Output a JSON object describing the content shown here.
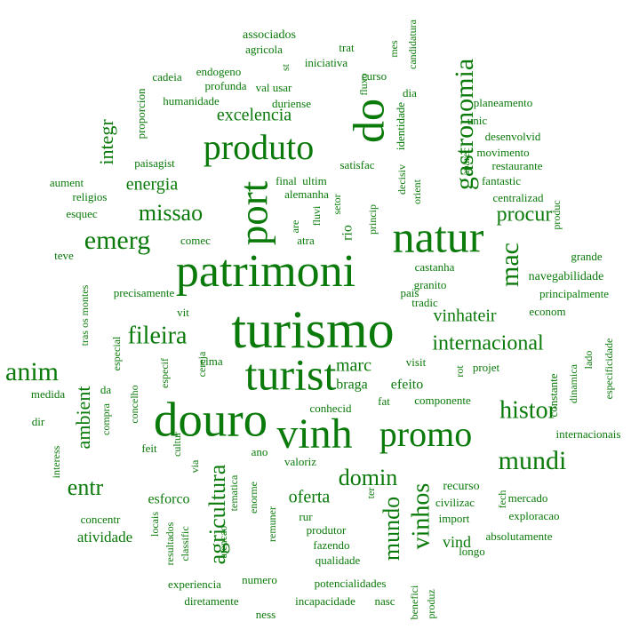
{
  "words": [
    "associados",
    "candidatura",
    "mes",
    "agricola",
    "trat",
    "st",
    "iniciativa",
    "fluxo",
    "cadeia",
    "endogeno",
    "curso",
    "profunda",
    "val usar",
    "dia",
    "proporcion",
    "humanidade",
    "duriense",
    "identidade",
    "planeamento",
    "gastronomia",
    "do",
    "excelencia",
    "unic",
    "integr",
    "produto",
    "desenvolvid",
    "aparec",
    "movimento",
    "restaurante",
    "paisagist",
    "satisfac",
    "decisiv",
    "orient",
    "fantastic",
    "aument",
    "energia",
    "final",
    "ultim",
    "port",
    "religios",
    "alemanha",
    "centralizad",
    "setor",
    "princip",
    "missao",
    "fluvi",
    "esquec",
    "procur",
    "produc",
    "natur",
    "are",
    "rio",
    "emerg",
    "comec",
    "atra",
    "mac",
    "grande",
    "teve",
    "castanha",
    "patrimoni",
    "navegabilidade",
    "tras os montes",
    "granito",
    "pais",
    "principalmente",
    "precisamente",
    "tradic",
    "vinhateir",
    "econom",
    "vit",
    "fileira",
    "turismo",
    "internacional",
    "especial",
    "especif",
    "cereja",
    "cima",
    "marc",
    "visit",
    "projet",
    "rot",
    "lado",
    "especificidade",
    "dinamica",
    "constante",
    "anim",
    "turist",
    "medida",
    "da",
    "braga",
    "efeito",
    "concelho",
    "ambient",
    "compra",
    "fat",
    "componente",
    "conhecid",
    "histor",
    "dir",
    "douro",
    "vinh",
    "promo",
    "internacionais",
    "cultur",
    "feit",
    "ano",
    "valoriz",
    "mundi",
    "interess",
    "via",
    "tematica",
    "agricultura",
    "domin",
    "entr",
    "enorme",
    "esforco",
    "vinhos",
    "oferta",
    "recurso",
    "fech",
    "mundo",
    "civilizac",
    "mercado",
    "ter",
    "import",
    "exploracao",
    "concentr",
    "locais",
    "remuner",
    "rur",
    "atividade",
    "produtor",
    "atencao",
    "absolutamente",
    "resultados",
    "classific",
    "fazendo",
    "vind",
    "longo",
    "qualidade",
    "experiencia",
    "numero",
    "potencialidades",
    "benefici",
    "produz",
    "diretamente",
    "incapacidade",
    "nasc",
    "ness"
  ]
}
